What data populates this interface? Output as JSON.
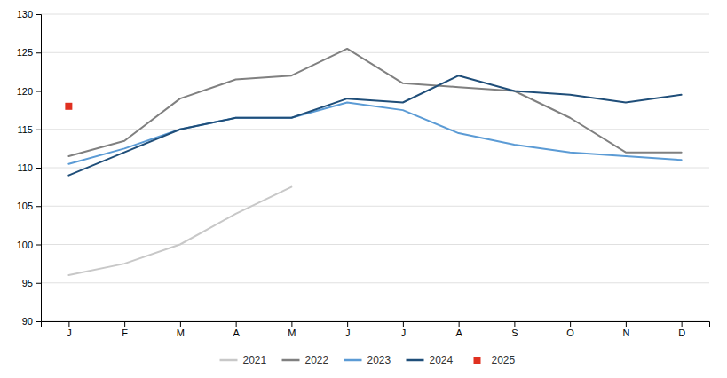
{
  "chart_data": {
    "type": "line",
    "categories": [
      "J",
      "F",
      "M",
      "A",
      "M",
      "J",
      "J",
      "A",
      "S",
      "O",
      "N",
      "D"
    ],
    "series": [
      {
        "name": "2021",
        "color": "#c8c8c8",
        "values": [
          96.0,
          97.5,
          100.0,
          104.0,
          107.5,
          null,
          null,
          null,
          null,
          null,
          null,
          null
        ]
      },
      {
        "name": "2022",
        "color": "#808080",
        "values": [
          111.5,
          113.5,
          119.0,
          121.5,
          122.0,
          125.5,
          121.0,
          120.5,
          120.0,
          116.5,
          112.0,
          112.0
        ]
      },
      {
        "name": "2023",
        "color": "#5b9bd5",
        "values": [
          110.5,
          112.5,
          115.0,
          116.5,
          116.5,
          118.5,
          117.5,
          114.5,
          113.0,
          112.0,
          111.5,
          111.0
        ]
      },
      {
        "name": "2024",
        "color": "#1f4e79",
        "values": [
          109.0,
          112.0,
          115.0,
          116.5,
          116.5,
          119.0,
          118.5,
          122.0,
          120.0,
          119.5,
          118.5,
          119.5
        ]
      },
      {
        "name": "2025",
        "color": "#e03020",
        "marker": "square",
        "line_style": "none",
        "values": [
          118.0,
          null,
          null,
          null,
          null,
          null,
          null,
          null,
          null,
          null,
          null,
          null
        ]
      }
    ],
    "ylim": [
      90,
      130
    ],
    "yticks": [
      90,
      95,
      100,
      105,
      110,
      115,
      120,
      125,
      130
    ],
    "grid": true,
    "legend": "bottom"
  }
}
